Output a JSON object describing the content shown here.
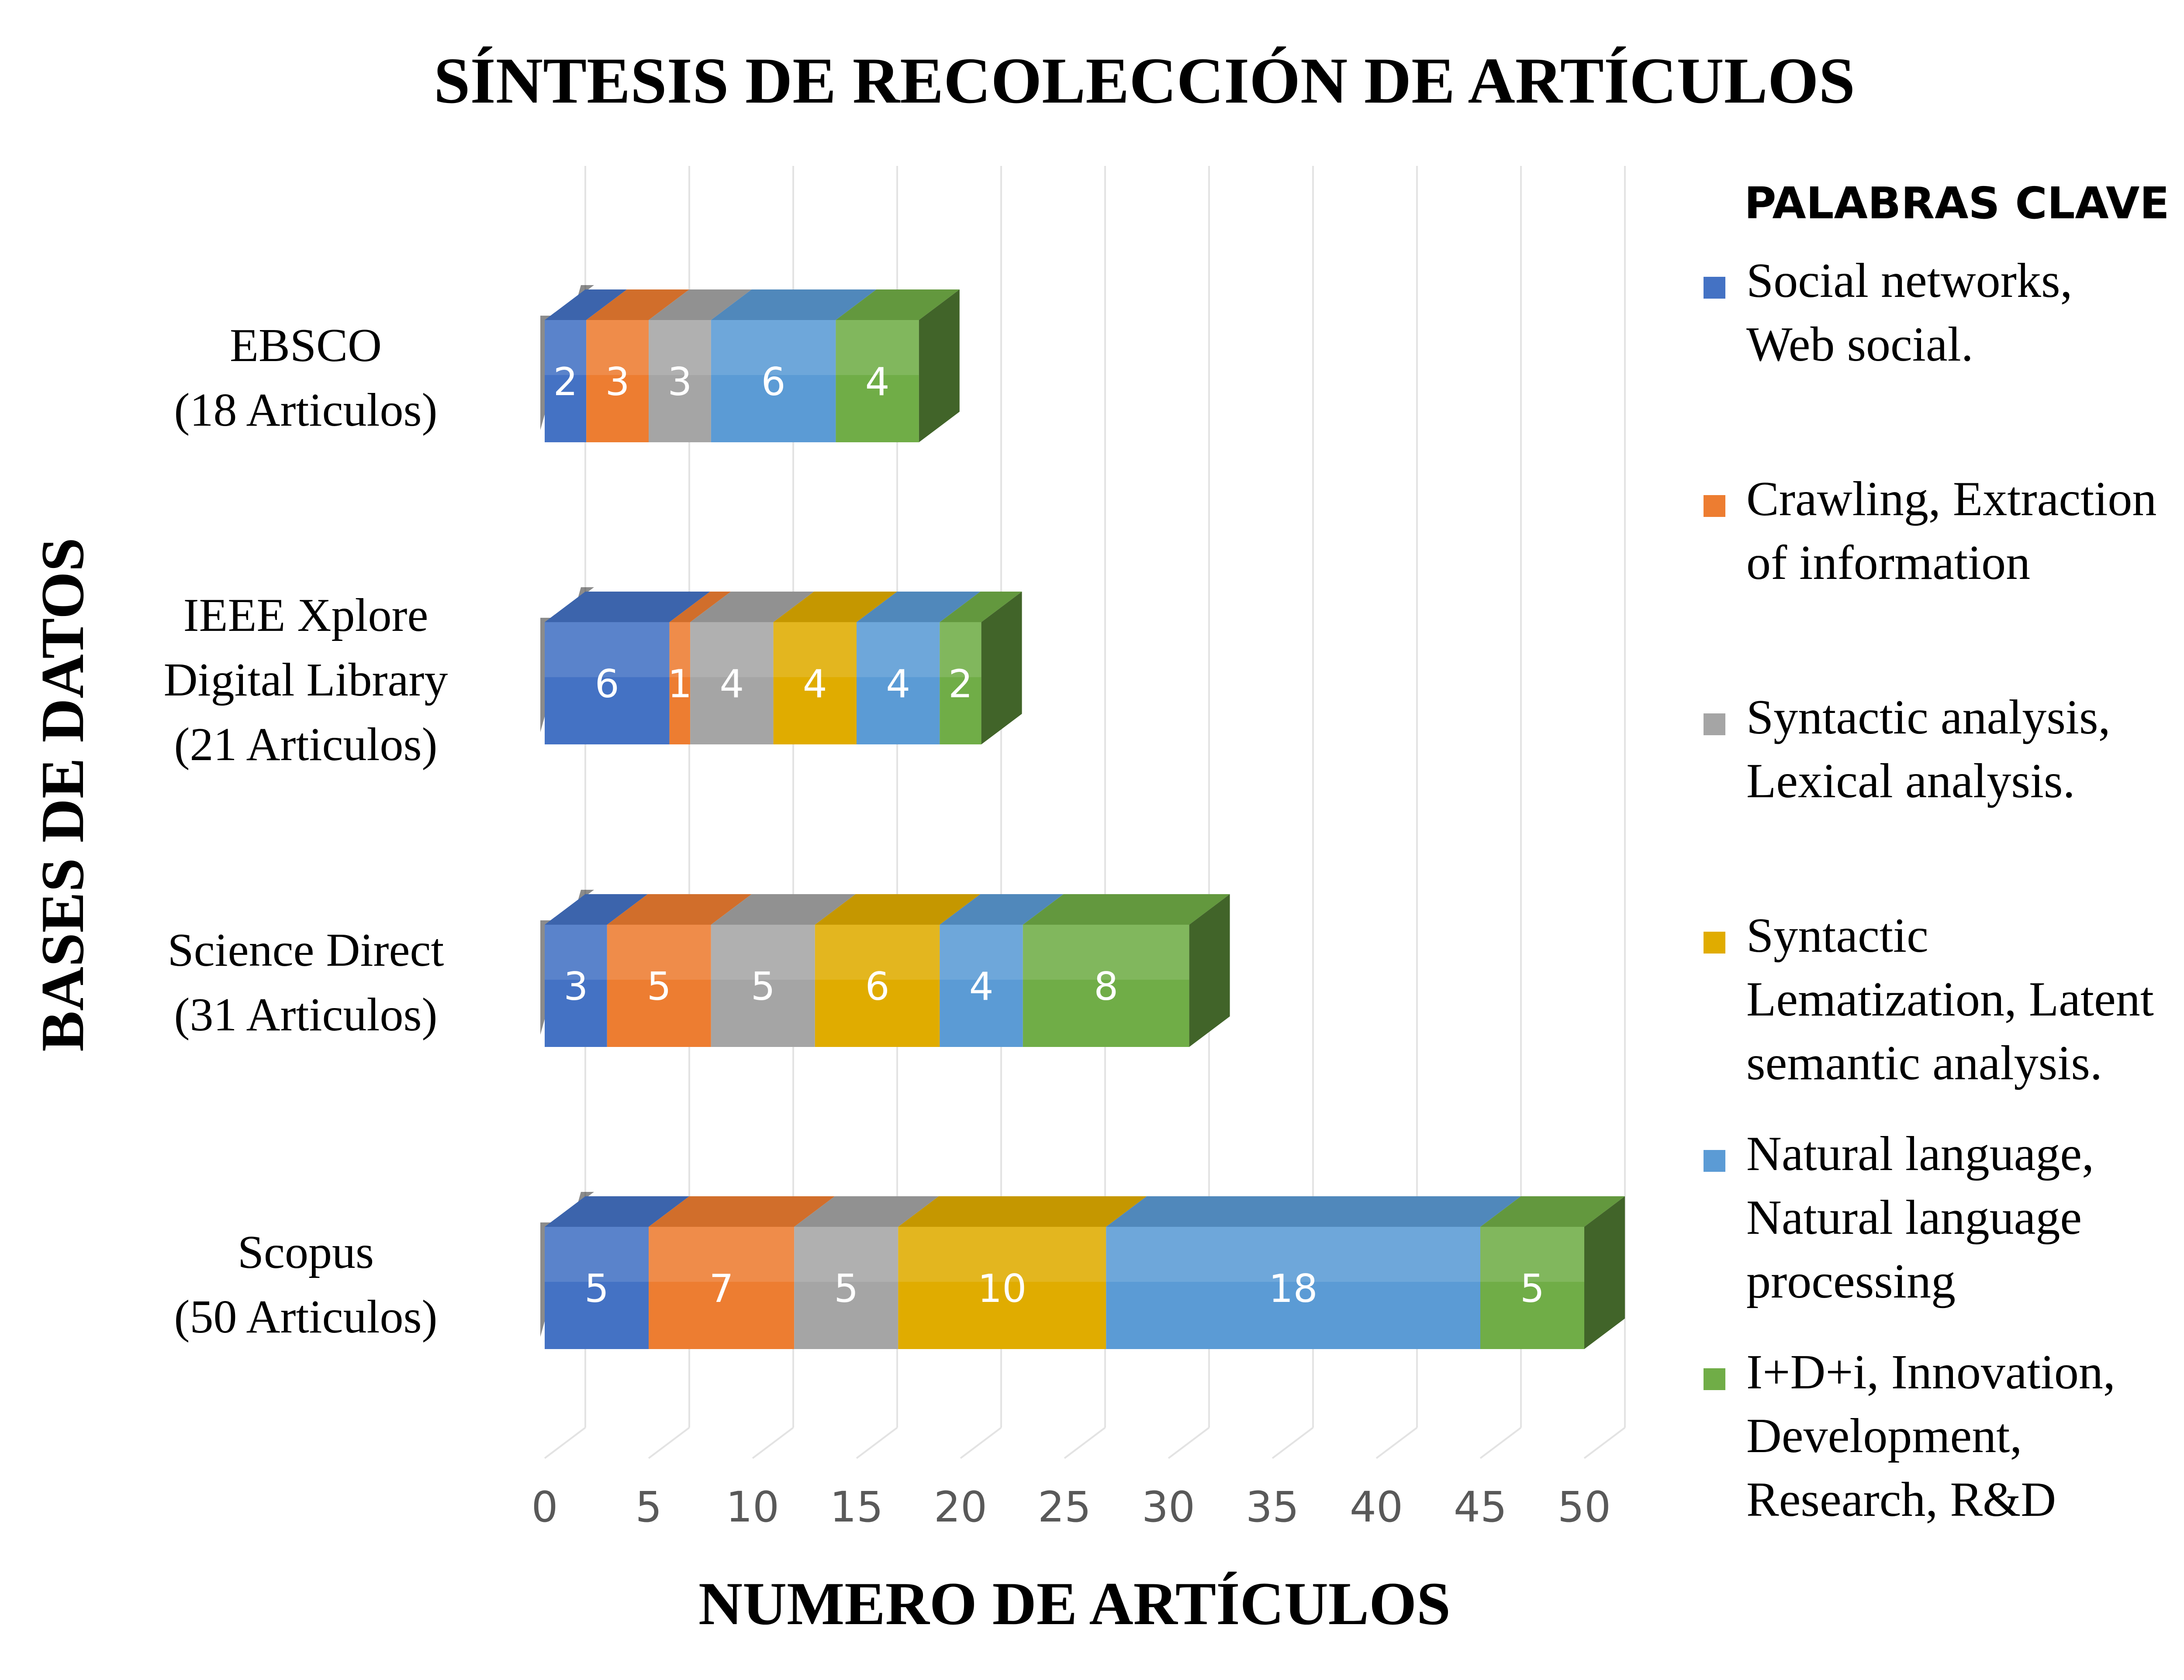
{
  "chart_data": {
    "type": "bar",
    "orientation": "horizontal",
    "stacked": true,
    "style": "3d",
    "title": "SÍNTESIS DE RECOLECCIÓN DE ARTÍCULOS",
    "xlabel": "NUMERO DE ARTÍCULOS",
    "ylabel": "BASES DE DATOS",
    "xlim": [
      0,
      50
    ],
    "xticks": [
      "0",
      "5",
      "10",
      "15",
      "20",
      "25",
      "30",
      "35",
      "40",
      "45",
      "50"
    ],
    "grid": true,
    "legend_position": "right",
    "legend_title": "PALABRAS CLAVE",
    "categories": [
      [
        "EBSCO",
        "(18 Articulos)"
      ],
      [
        "IEEE Xplore",
        "Digital Library",
        "(21 Articulos)"
      ],
      [
        "Science Direct",
        "(31 Articulos)"
      ],
      [
        "Scopus",
        "(50 Articulos)"
      ]
    ],
    "series": [
      {
        "name": [
          "Social networks,",
          "Web social."
        ],
        "color": "#4472C4",
        "values": [
          2,
          6,
          3,
          5
        ]
      },
      {
        "name": [
          "Crawling, Extraction",
          "of information"
        ],
        "color": "#ED7D31",
        "values": [
          3,
          1,
          5,
          7
        ]
      },
      {
        "name": [
          "Syntactic analysis,",
          "Lexical analysis."
        ],
        "color": "#A5A5A5",
        "values": [
          3,
          4,
          5,
          5
        ]
      },
      {
        "name": [
          "Syntactic",
          "Lematization, Latent",
          "semantic analysis."
        ],
        "color": "#E0AC00",
        "values": [
          0,
          4,
          6,
          10
        ]
      },
      {
        "name": [
          "Natural language,",
          "Natural language",
          "processing"
        ],
        "color": "#5B9BD5",
        "values": [
          6,
          4,
          4,
          18
        ]
      },
      {
        "name": [
          "I+D+i, Innovation,",
          "Development,",
          "Research, R&D"
        ],
        "color": "#70AD47",
        "values": [
          4,
          2,
          8,
          5
        ]
      }
    ]
  }
}
